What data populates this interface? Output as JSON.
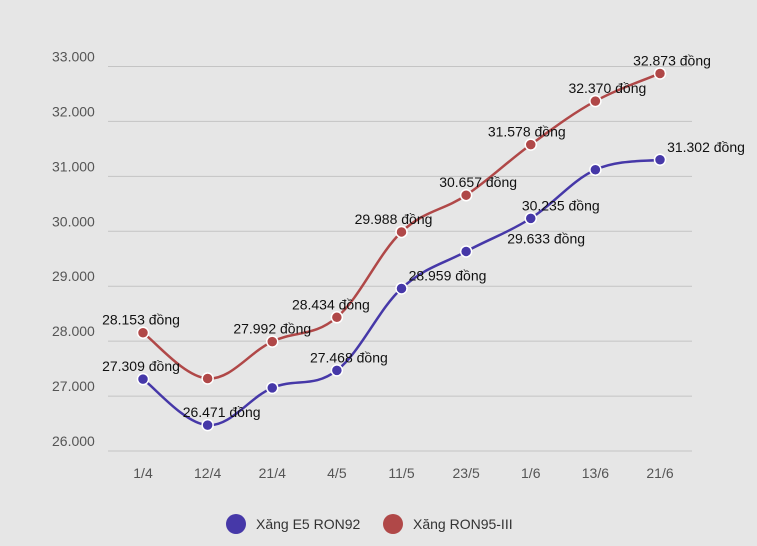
{
  "chart_data": {
    "type": "line",
    "title": "",
    "xlabel": "",
    "ylabel": "",
    "categories": [
      "1/4",
      "12/4",
      "21/4",
      "4/5",
      "11/5",
      "23/5",
      "1/6",
      "13/6",
      "21/6"
    ],
    "ylim": [
      25800,
      33300
    ],
    "y_ticks": [
      26000,
      27000,
      28000,
      29000,
      30000,
      31000,
      32000,
      33000
    ],
    "y_tick_labels": [
      "26.000",
      "27.000",
      "28.000",
      "29.000",
      "30.000",
      "31.000",
      "32.000",
      "33.000"
    ],
    "grid": true,
    "legend": "bottom",
    "series": [
      {
        "name": "Xăng E5 RON92",
        "color": "#4638a8",
        "values": [
          27309,
          26471,
          27150,
          27468,
          28959,
          29633,
          30235,
          31120,
          31302
        ],
        "labels": [
          "27.309 đồng",
          "26.471 đồng",
          "",
          "27.468 đồng",
          "28.959 đồng",
          "29.633 đồng",
          "30.235 đồng",
          "",
          "31.302 đồng"
        ]
      },
      {
        "name": "Xăng RON95-III",
        "color": "#b04848",
        "values": [
          28153,
          27320,
          27992,
          28434,
          29988,
          30657,
          31578,
          32370,
          32873
        ],
        "labels": [
          "28.153 đồng",
          "",
          "27.992 đồng",
          "28.434 đồng",
          "29.988 đồng",
          "30.657 đồng",
          "31.578 đồng",
          "32.370 đồng",
          "32.873 đồng"
        ]
      }
    ]
  }
}
